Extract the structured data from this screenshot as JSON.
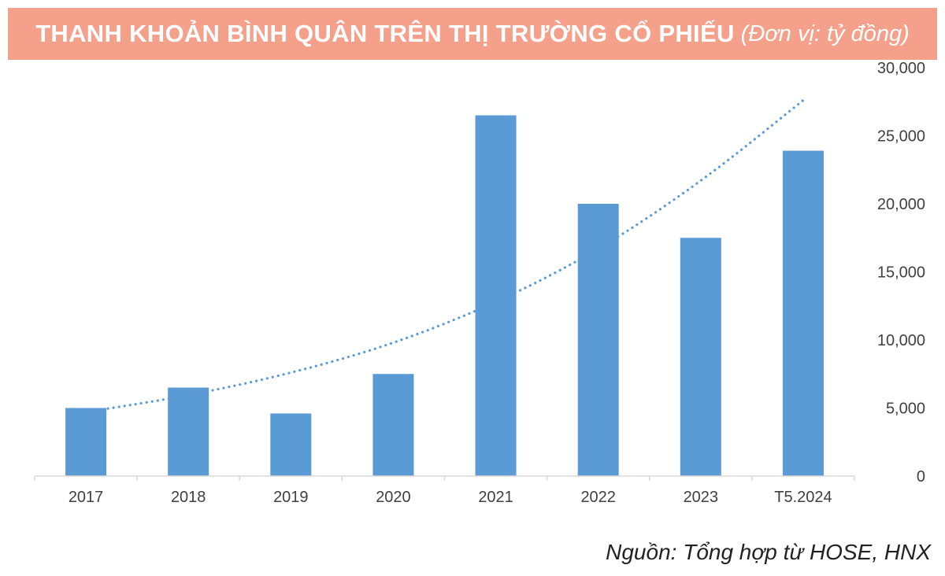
{
  "header": {
    "title": "THANH KHOẢN BÌNH QUÂN TRÊN THỊ TRƯỜNG CỔ PHIẾU",
    "unit": "(Đơn vị: tỷ đồng)"
  },
  "source": "Nguồn: Tổng hợp từ HOSE, HNX",
  "colors": {
    "title_bg": "#f4a08a",
    "bar": "#5b9bd5",
    "trendline": "#5b9bd5"
  },
  "chart_data": {
    "type": "bar",
    "categories": [
      "2017",
      "2018",
      "2019",
      "2020",
      "2021",
      "2022",
      "2023",
      "T5.2024"
    ],
    "values": [
      5000,
      6500,
      4600,
      7500,
      26500,
      20000,
      17500,
      23900
    ],
    "ylim": [
      0,
      30000
    ],
    "yticks": [
      0,
      5000,
      10000,
      15000,
      20000,
      25000,
      30000
    ],
    "ytick_labels": [
      "0",
      "5,000",
      "10,000",
      "15,000",
      "20,000",
      "25,000",
      "30,000"
    ],
    "y_axis_side": "right",
    "grid": false,
    "trendline": {
      "type": "exponential",
      "style": "dotted",
      "values": [
        4700,
        5950,
        7600,
        9800,
        12800,
        16700,
        21700,
        27600
      ]
    }
  }
}
